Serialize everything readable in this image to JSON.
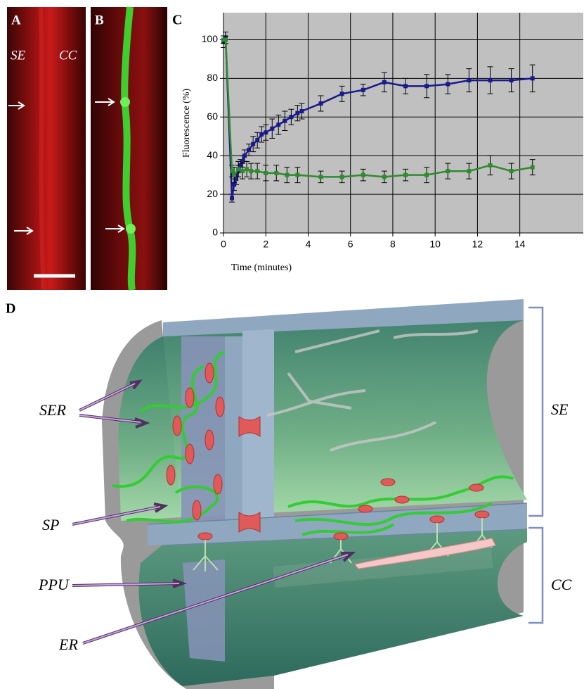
{
  "panels": {
    "a": {
      "label": "A",
      "left": "SE",
      "right": "CC"
    },
    "b": {
      "label": "B"
    },
    "c": {
      "label": "C"
    },
    "d": {
      "label": "D"
    }
  },
  "chart_data": {
    "type": "line",
    "xlabel": "Time (minutes)",
    "ylabel": "Fluorescence (%)",
    "xlim": [
      0,
      17
    ],
    "ylim": [
      0,
      114
    ],
    "xticks": [
      0,
      2,
      4,
      6,
      8,
      10,
      12,
      14
    ],
    "yticks": [
      0,
      20,
      40,
      60,
      80,
      100
    ],
    "grid": true,
    "background": "#c0c0c0",
    "series": [
      {
        "color": "#1a1a8c",
        "x": [
          0,
          0.1,
          0.4,
          0.5,
          0.6,
          0.7,
          0.8,
          0.9,
          1.0,
          1.2,
          1.4,
          1.6,
          1.8,
          2,
          2.3,
          2.6,
          2.9,
          3.2,
          3.5,
          3.7,
          4.6,
          5.6,
          6.6,
          7.6,
          8.6,
          9.6,
          10.6,
          11.6,
          12.6,
          13.6,
          14.6
        ],
        "values": [
          99,
          101,
          18,
          25,
          28,
          32,
          35,
          37,
          40,
          43,
          46,
          48,
          51,
          52,
          54,
          56,
          58,
          60,
          62,
          63,
          67,
          72,
          74,
          78,
          76,
          76,
          77,
          79,
          79,
          79,
          80
        ],
        "errors": [
          3,
          3,
          2,
          3,
          3,
          3,
          3,
          3,
          3,
          3,
          4,
          4,
          4,
          4,
          5,
          5,
          5,
          4,
          4,
          4,
          4,
          4,
          3,
          5,
          4,
          6,
          5,
          6,
          7,
          6,
          7
        ]
      },
      {
        "color": "#2e8b2e",
        "x": [
          0,
          0.1,
          0.4,
          0.5,
          0.7,
          0.9,
          1.1,
          1.3,
          1.6,
          2,
          2.5,
          3,
          3.5,
          4.6,
          5.6,
          6.6,
          7.6,
          8.6,
          9.6,
          10.6,
          11.6,
          12.6,
          13.6,
          14.6
        ],
        "values": [
          100,
          100,
          32,
          30,
          33,
          32,
          33,
          32,
          32,
          31,
          31,
          30,
          30,
          29,
          29,
          30,
          29,
          30,
          30,
          32,
          32,
          35,
          32,
          34
        ],
        "errors": [
          2,
          2,
          3,
          4,
          4,
          4,
          4,
          4,
          4,
          4,
          4,
          4,
          4,
          3,
          3,
          3,
          3,
          3,
          4,
          4,
          4,
          5,
          4,
          4
        ]
      }
    ]
  },
  "diagram": {
    "labels": [
      "SER",
      "SP",
      "PPU",
      "ER"
    ],
    "brackets": [
      "SE",
      "CC"
    ]
  }
}
